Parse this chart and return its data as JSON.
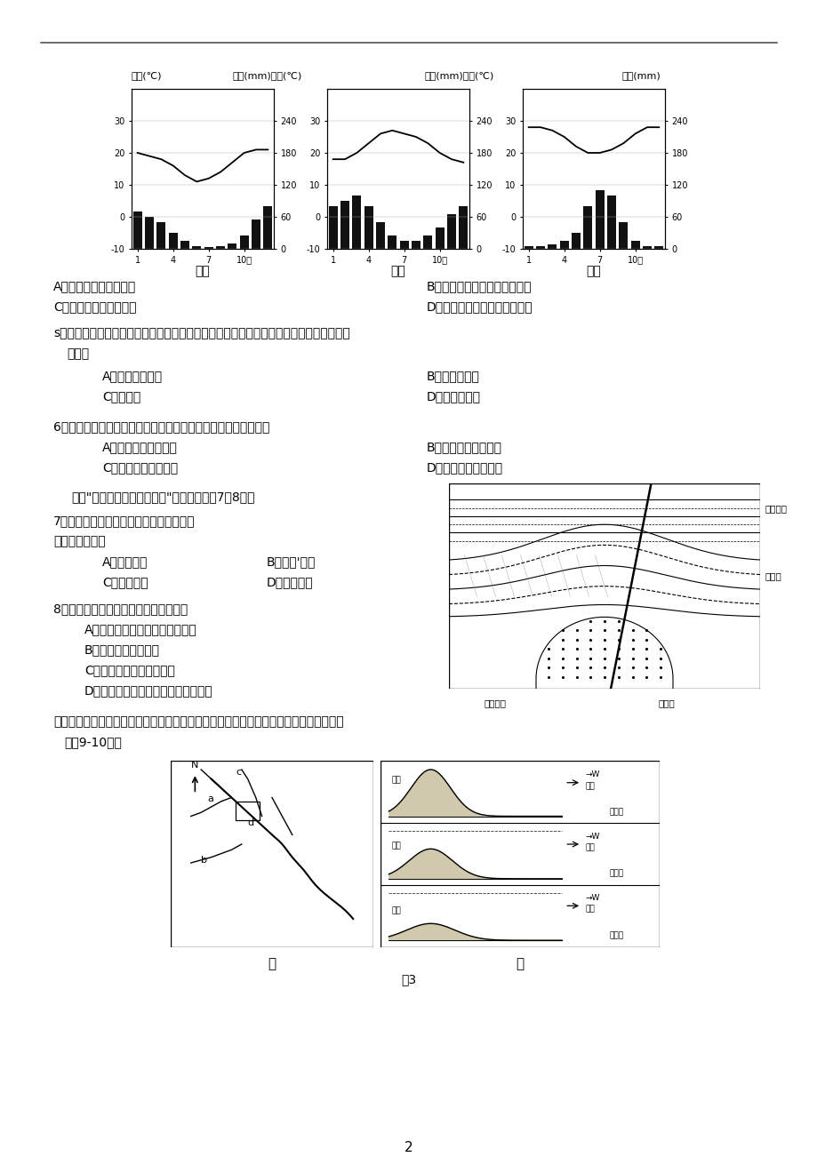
{
  "page_bg": "#ffffff",
  "climate_charts": {
    "stations": [
      "甲站",
      "乙站",
      "丙站"
    ],
    "header_labels": [
      "气温(℃)",
      "降水(mm)气温(℃)",
      "降水(mm)气温(℃)",
      "降水(mm)"
    ],
    "jia_temp": [
      20,
      19,
      18,
      16,
      13,
      11,
      12,
      14,
      17,
      20,
      21,
      21
    ],
    "jia_rain": [
      70,
      60,
      50,
      30,
      15,
      5,
      3,
      5,
      10,
      25,
      55,
      80
    ],
    "yi_temp": [
      18,
      18,
      20,
      23,
      26,
      27,
      26,
      25,
      23,
      20,
      18,
      17
    ],
    "yi_rain": [
      80,
      90,
      100,
      80,
      50,
      25,
      15,
      15,
      25,
      40,
      65,
      80
    ],
    "bing_temp": [
      28,
      28,
      27,
      25,
      22,
      20,
      20,
      21,
      23,
      26,
      28,
      28
    ],
    "bing_rain": [
      5,
      5,
      8,
      15,
      30,
      80,
      110,
      100,
      50,
      15,
      5,
      5
    ]
  },
  "q4a": "A．北半球的她中海气候",
  "q4b": "B．北半球的热带稀树草原气候",
  "q4c": "C．南半球的地中海气候",
  "q4d": "D．南半球的热带稀树草原气候",
  "q5_line1": "s．三个测站部分月份降水较少，其主要原因是受到某一气压带或风带的影响。该气压带或",
  "q5_line2": "   风带是",
  "q5a": "A．赤道低气压带",
  "q5b": "B．东南信风带",
  "q5c": "C．西风带",
  "q5d": "D．东北信风带",
  "q6": "6．根据温度资料，可以推测三个测站的海拔高度由高到低依次为",
  "q6a": "A．甲站－乙站－丙站",
  "q6b": "B．甲站－丙站－乙站",
  "q6c": "C．乙站－甲站－丙站",
  "q6d": "D．乙站－丙站－甲站",
  "q7_intro": "右为\"某区域地质构造剖面图\"。读图，回答7～8题。",
  "q7": "7．图中甲、乙、丙、丁按出现的先后顺序",
  "q7_2": "排列，正确的是",
  "q7a": "A．甲乙丙丁",
  "q7b": "B．甲了'乙丙",
  "q7c": "C．丙丁甲乙",
  "q7d": "D．丁丙甲乙",
  "q8": "8．下列关于此地开发的叙述，合理的是",
  "q8a": "A．可以利用天然拱形，修建隧道",
  "q8b": "B．地表可以修建铁路",
  "q8c": "C．可以在此地修建采石厂",
  "q8d": "D．褶皱内部肯定存在油气，可以开发",
  "q9_line1": "下图中甲图为我国南方某区域水系示意图，乙图是甲图中方框处的地形演化示意图。读图",
  "q9_line2": "  完成9-10题。",
  "geo_label_right1": "沉积岩乙",
  "geo_label_right2": "褶皱丁",
  "geo_label_bot1": "岩浆岩丙",
  "geo_label_bot2": "断层甲",
  "fig_label_jia": "甲",
  "fig_label_yi": "乙",
  "fig3": "图3",
  "page_num": "2"
}
